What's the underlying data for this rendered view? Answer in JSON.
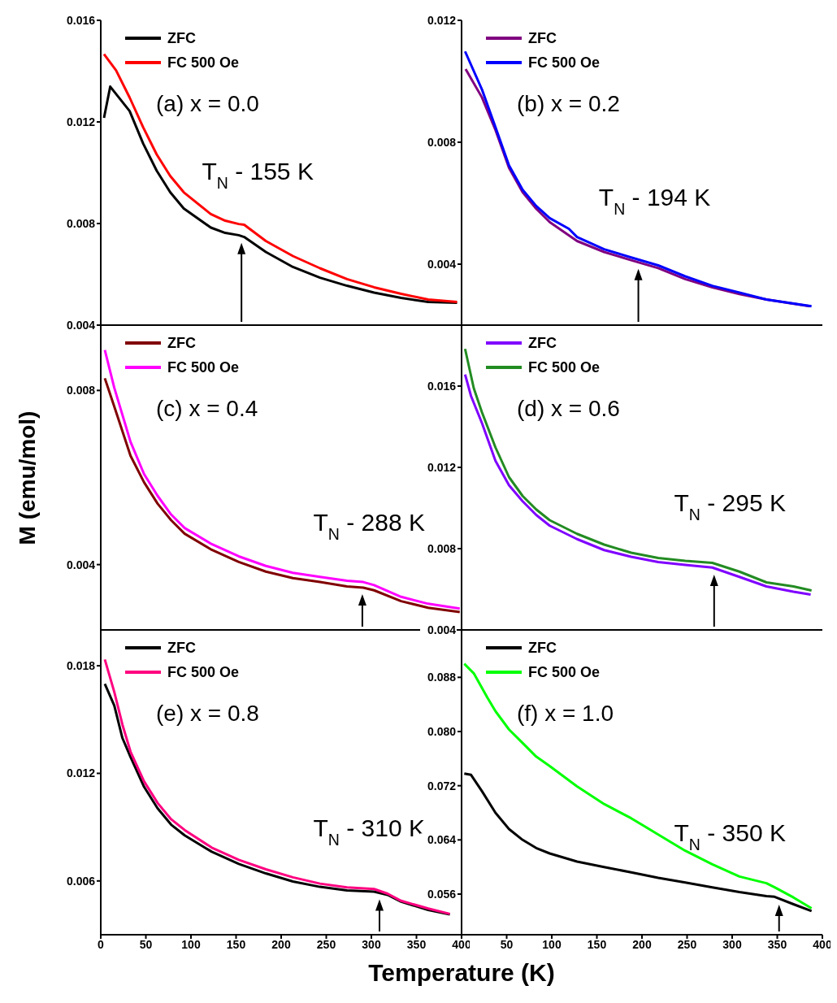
{
  "chart_data": [
    {
      "type": "line",
      "xlim": [
        0,
        400
      ],
      "xticks": [
        0,
        50,
        100,
        150,
        200,
        250,
        300,
        350,
        400
      ],
      "ylim": [
        0.004,
        0.016
      ],
      "yticks": [
        0.004,
        0.008,
        0.012,
        0.016
      ],
      "tick_labels": "y",
      "legend": "top left",
      "annotations": [
        "(a) x = 0.0",
        {
          "text": "T$_{N}$ - 155 K",
          "x": 156,
          "y": 0.0075
        }
      ],
      "series": [
        {
          "name": "ZFC",
          "color": "#000000",
          "x": [
            3.6,
            10.5,
            32,
            47,
            62,
            77,
            92,
            122,
            138,
            153,
            159,
            183,
            213,
            243,
            273,
            303,
            333,
            363,
            395
          ],
          "values": [
            0.01216,
            0.01339,
            0.01243,
            0.01115,
            0.01008,
            0.00923,
            0.00859,
            0.00784,
            0.00763,
            0.00754,
            0.00747,
            0.00688,
            0.00629,
            0.00587,
            0.00555,
            0.00528,
            0.00507,
            0.00491,
            0.00488
          ]
        },
        {
          "name": "FC 500 Oe",
          "color": "#ff0000",
          "x": [
            3.6,
            17,
            32,
            47,
            62,
            77,
            92,
            122,
            138,
            153,
            159,
            183,
            213,
            243,
            273,
            303,
            333,
            363,
            395
          ],
          "values": [
            0.01467,
            0.01403,
            0.01296,
            0.01179,
            0.01072,
            0.00987,
            0.00923,
            0.00837,
            0.00811,
            0.00798,
            0.00795,
            0.00731,
            0.00672,
            0.00624,
            0.00581,
            0.00549,
            0.00523,
            0.00501,
            0.00491
          ]
        }
      ]
    },
    {
      "type": "line",
      "xlim": [
        0,
        400
      ],
      "xticks": [
        0,
        50,
        100,
        150,
        200,
        250,
        300,
        350,
        400
      ],
      "ylim": [
        0.002,
        0.012
      ],
      "yticks": [
        0.004,
        0.008,
        0.012
      ],
      "tick_labels": "y",
      "legend": "top left",
      "annotations": [
        "(b) x = 0.2",
        {
          "text": "T$_{N}$ - 194 K",
          "x": 196,
          "y": 0.00406
        }
      ],
      "series": [
        {
          "name": "ZFC",
          "color": "#800080",
          "x": [
            4.5,
            22.6,
            37.6,
            52.6,
            67.7,
            82.7,
            97.7,
            128,
            158,
            188,
            218,
            248,
            278,
            308,
            338,
            386
          ],
          "values": [
            0.0104,
            0.00947,
            0.0084,
            0.00716,
            0.00636,
            0.00582,
            0.00538,
            0.00476,
            0.0044,
            0.00413,
            0.00387,
            0.00351,
            0.00324,
            0.00302,
            0.00284,
            0.00262
          ]
        },
        {
          "name": "FC 500 Oe",
          "color": "#0000ff",
          "x": [
            3.9,
            22.6,
            37.6,
            52.6,
            67.7,
            82.7,
            97.7,
            119,
            128,
            158,
            188,
            218,
            248,
            278,
            308,
            338,
            388
          ],
          "values": [
            0.01098,
            0.00973,
            0.00849,
            0.00724,
            0.00644,
            0.00591,
            0.00551,
            0.00516,
            0.00489,
            0.00449,
            0.00422,
            0.00396,
            0.0036,
            0.00329,
            0.00307,
            0.00284,
            0.00262
          ]
        }
      ]
    },
    {
      "type": "line",
      "xlim": [
        0,
        400
      ],
      "xticks": [
        0,
        50,
        100,
        150,
        200,
        250,
        300,
        350,
        400
      ],
      "ylim": [
        0.0025,
        0.0095
      ],
      "yticks": [
        0.004,
        0.008
      ],
      "tick_labels": "y",
      "legend": "top left",
      "ylabel": "M (emu/mol)",
      "annotations": [
        "(c) x = 0.4",
        {
          "text": "T$_{N}$ - 288 K",
          "x": 290,
          "y": 0.00347
        }
      ],
      "series": [
        {
          "name": "ZFC",
          "color": "#800000",
          "x": [
            4.5,
            15,
            33,
            48,
            63,
            78,
            93,
            123,
            153,
            183,
            213,
            243,
            273,
            291,
            303,
            333,
            363,
            398
          ],
          "values": [
            0.00828,
            0.00763,
            0.0065,
            0.00589,
            0.0054,
            0.00502,
            0.00471,
            0.00434,
            0.00406,
            0.00384,
            0.00369,
            0.0036,
            0.0035,
            0.00347,
            0.00341,
            0.00316,
            0.00301,
            0.00291
          ]
        },
        {
          "name": "FC 500 Oe",
          "color": "#ff00ff",
          "x": [
            4.5,
            15,
            33,
            48,
            63,
            78,
            93,
            123,
            153,
            183,
            213,
            243,
            273,
            291,
            303,
            333,
            363,
            398
          ],
          "values": [
            0.00893,
            0.00806,
            0.00682,
            0.00608,
            0.00558,
            0.00515,
            0.00484,
            0.00447,
            0.00419,
            0.00397,
            0.00381,
            0.00372,
            0.00363,
            0.0036,
            0.00353,
            0.00326,
            0.0031,
            0.00299
          ]
        }
      ]
    },
    {
      "type": "line",
      "xlim": [
        0,
        400
      ],
      "xticks": [
        0,
        50,
        100,
        150,
        200,
        250,
        300,
        350,
        400
      ],
      "ylim": [
        0.004,
        0.019
      ],
      "yticks": [
        0.004,
        0.008,
        0.012,
        0.016
      ],
      "tick_labels": "y",
      "legend": "top left",
      "annotations": [
        "(d) x = 0.6",
        {
          "text": "T$_{N}$ - 295 K",
          "x": 280,
          "y": 0.00704
        }
      ],
      "series": [
        {
          "name": "ZFC",
          "color": "#7f00ff",
          "x": [
            3.9,
            10.5,
            22.6,
            37.6,
            52.6,
            67.7,
            82.7,
            97.7,
            128,
            158,
            188,
            218,
            248,
            278,
            308,
            338,
            368,
            387
          ],
          "values": [
            0.01657,
            0.01551,
            0.01418,
            0.01232,
            0.01112,
            0.01033,
            0.00966,
            0.00913,
            0.00847,
            0.00793,
            0.0076,
            0.00734,
            0.0072,
            0.00707,
            0.00661,
            0.00614,
            0.00588,
            0.00574
          ]
        },
        {
          "name": "FC 500 Oe",
          "color": "#228b22",
          "x": [
            3.9,
            13.5,
            22.6,
            37.6,
            52.6,
            67.7,
            82.7,
            97.7,
            128,
            158,
            188,
            218,
            248,
            278,
            308,
            338,
            368,
            388
          ],
          "values": [
            0.01783,
            0.0159,
            0.01471,
            0.01298,
            0.01152,
            0.01059,
            0.00993,
            0.0094,
            0.00873,
            0.0082,
            0.0078,
            0.00754,
            0.0074,
            0.0073,
            0.00687,
            0.00634,
            0.00614,
            0.00594
          ]
        }
      ]
    },
    {
      "type": "line",
      "xlim": [
        0,
        400
      ],
      "xticks": [
        0,
        50,
        100,
        150,
        200,
        250,
        300,
        350,
        400
      ],
      "ylim": [
        0.003,
        0.02
      ],
      "yticks": [
        0.006,
        0.012,
        0.018
      ],
      "legend": "top left",
      "xlabel": "Temperature (K)",
      "annotations": [
        "(e) x = 0.8",
        {
          "text": "T$_{N}$ - 310 K",
          "x": 309,
          "y": 0.00533
        }
      ],
      "series": [
        {
          "name": "ZFC",
          "color": "#000000",
          "x": [
            4.5,
            15,
            24,
            33,
            48,
            63,
            78,
            93,
            123,
            153,
            183,
            213,
            243,
            273,
            303,
            318,
            333,
            363,
            387
          ],
          "values": [
            0.01699,
            0.01578,
            0.01397,
            0.01291,
            0.01125,
            0.01005,
            0.00914,
            0.00854,
            0.00763,
            0.00695,
            0.00642,
            0.00597,
            0.00567,
            0.00547,
            0.0054,
            0.00522,
            0.00484,
            0.00438,
            0.00413
          ]
        },
        {
          "name": "FC 500 Oe",
          "color": "#ff0080",
          "x": [
            4.5,
            15,
            24,
            33,
            48,
            63,
            78,
            93,
            123,
            153,
            183,
            213,
            243,
            273,
            303,
            318,
            333,
            363,
            387
          ],
          "values": [
            0.01835,
            0.01654,
            0.01472,
            0.01321,
            0.01155,
            0.01035,
            0.00944,
            0.00884,
            0.00786,
            0.00718,
            0.00665,
            0.0062,
            0.00585,
            0.00564,
            0.00555,
            0.00529,
            0.00489,
            0.00446,
            0.00416
          ]
        }
      ]
    },
    {
      "type": "line",
      "xlim": [
        0,
        400
      ],
      "xticks": [
        50,
        100,
        150,
        200,
        250,
        300,
        350,
        400
      ],
      "ylim": [
        0.05,
        0.095
      ],
      "yticks": [
        0.056,
        0.064,
        0.072,
        {
          "value": 0.08,
          "label": "0.080"
        },
        0.088
      ],
      "legend": "top left",
      "annotations": [
        "(f) x = 1.0",
        {
          "text": "T$_{N}$ - 350 K",
          "x": 352,
          "y": 0.0554
        }
      ],
      "series": [
        {
          "name": "ZFC",
          "color": "#000000",
          "x": [
            3,
            10.5,
            22.6,
            37.6,
            52.6,
            67.7,
            82.7,
            97.7,
            128,
            158,
            188,
            218,
            248,
            278,
            308,
            338,
            347,
            368,
            388
          ],
          "values": [
            0.0738,
            0.0736,
            0.0712,
            0.068,
            0.0656,
            0.064,
            0.0628,
            0.062,
            0.0608,
            0.06,
            0.0592,
            0.0584,
            0.0577,
            0.057,
            0.0563,
            0.0557,
            0.0556,
            0.0545,
            0.0535
          ]
        },
        {
          "name": "FC 500 Oe",
          "color": "#00ff00",
          "x": [
            3,
            13.5,
            28.6,
            37.6,
            52.6,
            67.7,
            82.7,
            97.7,
            128,
            158,
            188,
            218,
            248,
            278,
            308,
            338,
            347,
            368,
            388
          ],
          "values": [
            0.09,
            0.0886,
            0.085,
            0.083,
            0.0803,
            0.0783,
            0.0763,
            0.0749,
            0.0719,
            0.0693,
            0.0672,
            0.0648,
            0.0624,
            0.0604,
            0.0586,
            0.0576,
            0.057,
            0.0555,
            0.0539
          ]
        }
      ]
    }
  ]
}
